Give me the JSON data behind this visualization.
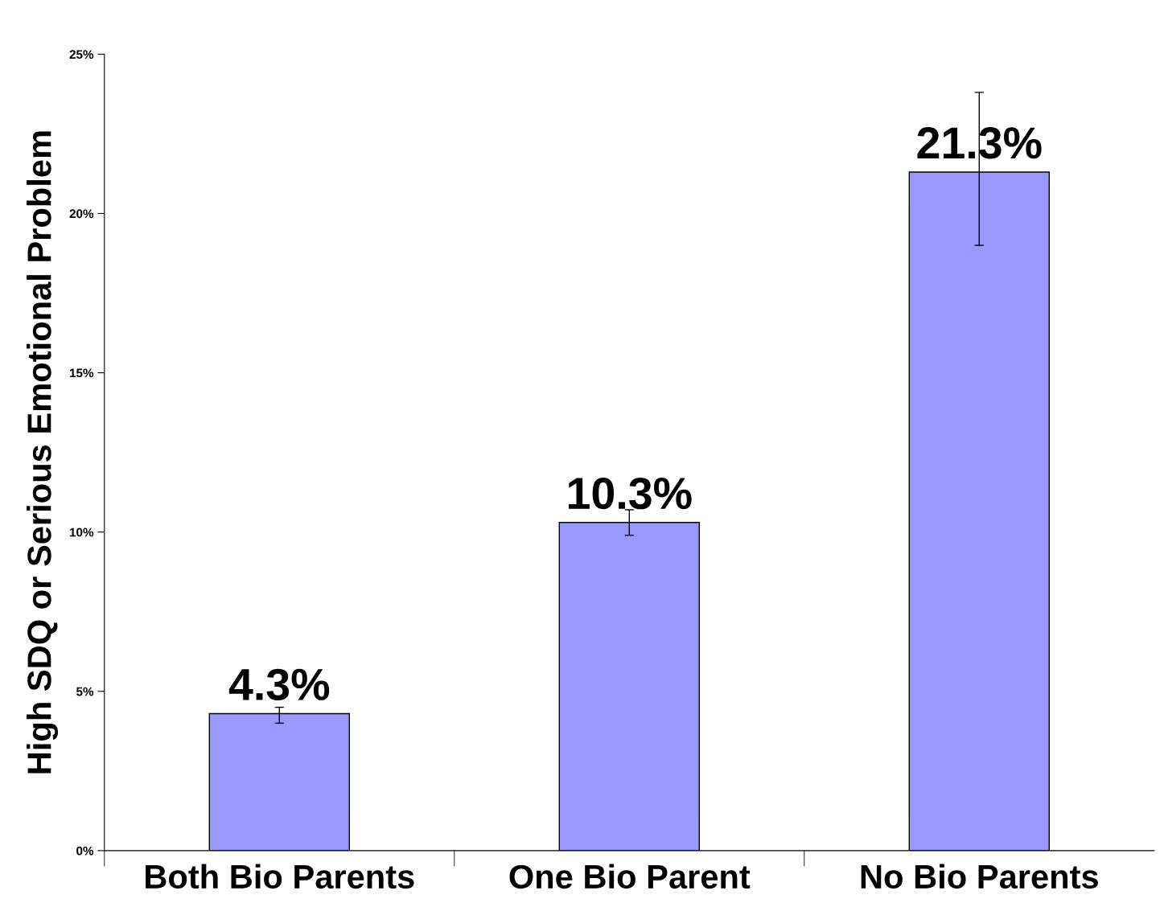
{
  "chart_data": {
    "type": "bar",
    "ylabel": "High SDQ or Serious Emotional Problem",
    "categories": [
      "Both Bio Parents",
      "One Bio Parent",
      "No Bio Parents"
    ],
    "values": [
      4.3,
      10.3,
      21.3
    ],
    "color": "#9999ff",
    "errors": [
      [
        4.0,
        4.5
      ],
      [
        9.9,
        10.7
      ],
      [
        19.0,
        23.8
      ]
    ],
    "value_labels": [
      "4.3%",
      "10.3%",
      "21.3%"
    ],
    "ylim": [
      0,
      25
    ],
    "yticks": [
      {
        "value": 0,
        "label": "0%"
      },
      {
        "value": 5,
        "label": "5%"
      },
      {
        "value": 10,
        "label": "10%"
      },
      {
        "value": 15,
        "label": "15%"
      },
      {
        "value": 20,
        "label": "20%"
      },
      {
        "value": 25,
        "label": "25%"
      }
    ],
    "grid": false
  }
}
